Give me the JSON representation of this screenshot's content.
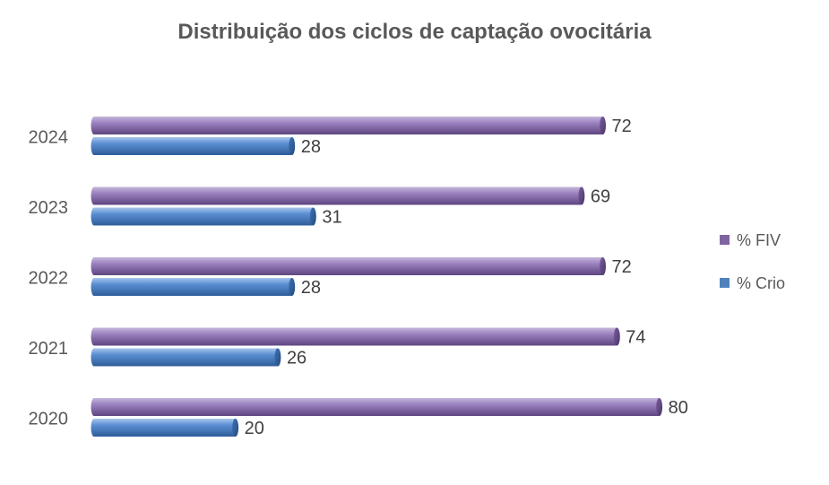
{
  "chart_data": {
    "type": "bar",
    "orientation": "horizontal",
    "title": "Distribuição dos ciclos de captação ovocitária",
    "categories": [
      "2024",
      "2023",
      "2022",
      "2021",
      "2020"
    ],
    "series": [
      {
        "name": "% FIV",
        "values": [
          72,
          69,
          72,
          74,
          80
        ],
        "color": "#8064A2"
      },
      {
        "name": "% Crio",
        "values": [
          28,
          31,
          28,
          26,
          20
        ],
        "color": "#4F81BD"
      }
    ],
    "xlim": [
      0,
      85
    ],
    "grid": false,
    "data_labels": true,
    "legend_position": "right"
  }
}
